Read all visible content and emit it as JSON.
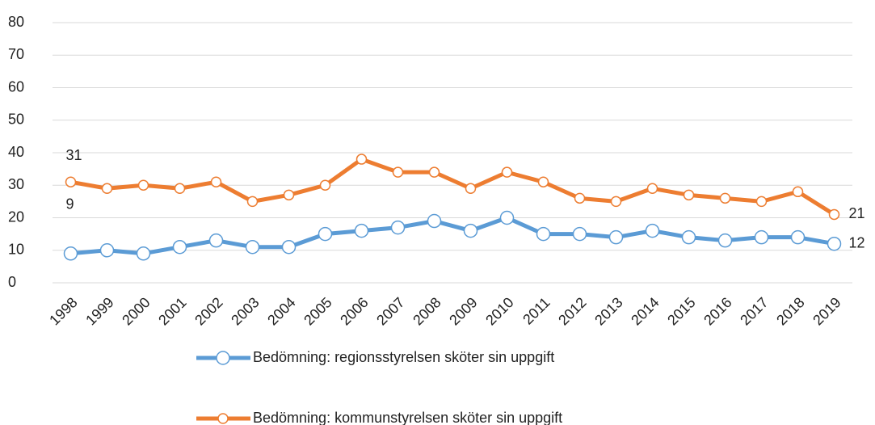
{
  "chart_data": {
    "type": "line",
    "categories": [
      "1998",
      "1999",
      "2000",
      "2001",
      "2002",
      "2003",
      "2004",
      "2005",
      "2006",
      "2007",
      "2008",
      "2009",
      "2010",
      "2011",
      "2012",
      "2013",
      "2014",
      "2015",
      "2016",
      "2017",
      "2018",
      "2019"
    ],
    "series": [
      {
        "name": "Bedömning: regionsstyrelsen sköter sin uppgift",
        "color": "#5b9bd5",
        "values": [
          9,
          10,
          9,
          11,
          13,
          11,
          11,
          15,
          16,
          17,
          19,
          16,
          20,
          15,
          15,
          14,
          16,
          14,
          13,
          14,
          14,
          12
        ]
      },
      {
        "name": "Bedömning: kommunstyrelsen sköter sin uppgift",
        "color": "#ed7d31",
        "values": [
          31,
          29,
          30,
          29,
          31,
          25,
          27,
          30,
          38,
          34,
          34,
          29,
          34,
          31,
          26,
          25,
          29,
          27,
          26,
          25,
          28,
          21
        ]
      }
    ],
    "ylim": [
      0,
      80
    ],
    "yticks": [
      0,
      10,
      20,
      30,
      40,
      50,
      60,
      70,
      80
    ],
    "grid": true
  }
}
